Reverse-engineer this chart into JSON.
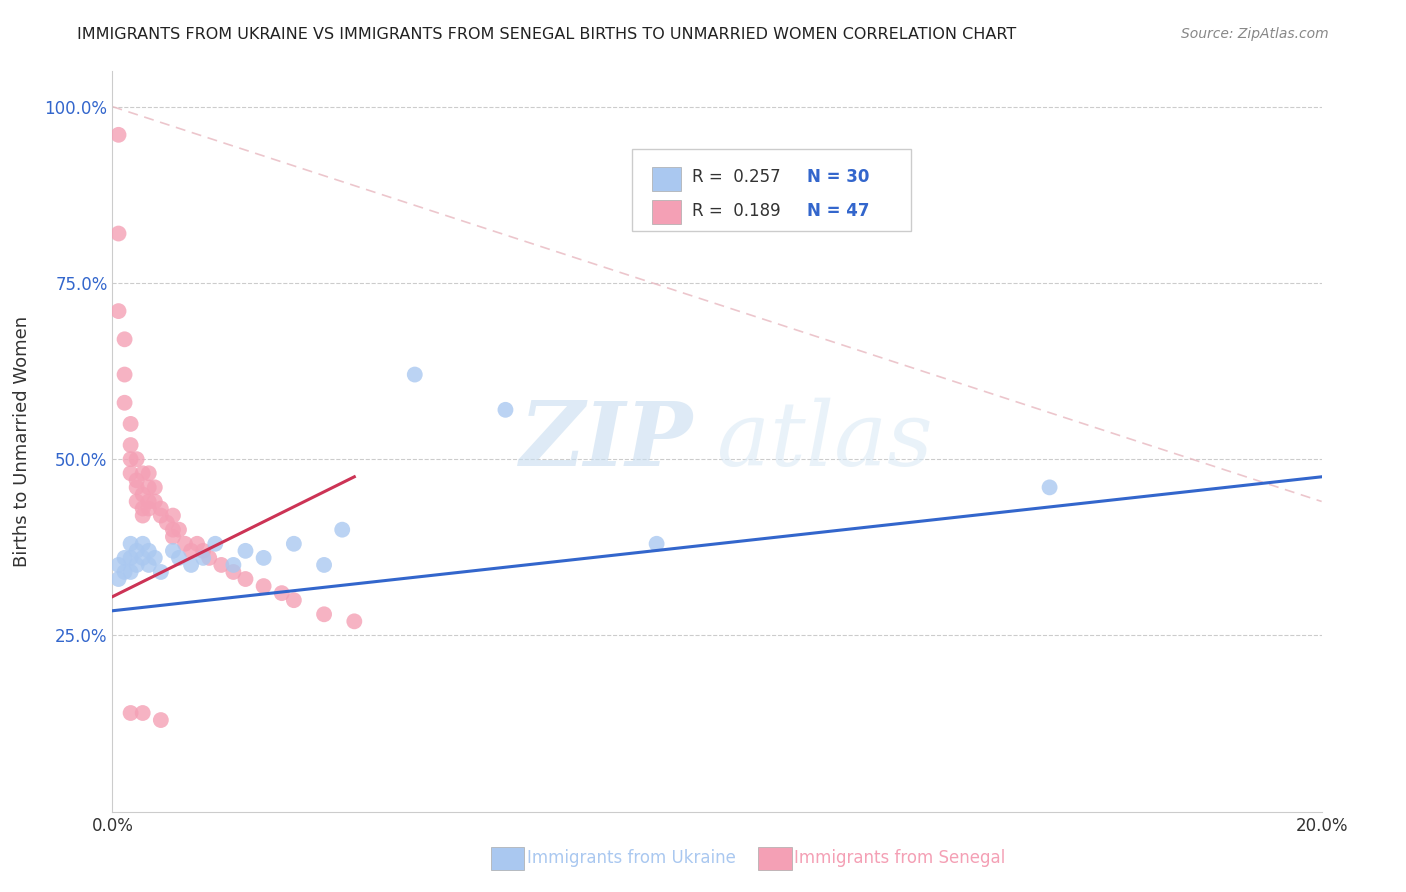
{
  "title": "IMMIGRANTS FROM UKRAINE VS IMMIGRANTS FROM SENEGAL BIRTHS TO UNMARRIED WOMEN CORRELATION CHART",
  "source": "Source: ZipAtlas.com",
  "ylabel": "Births to Unmarried Women",
  "xlabel_ukraine": "Immigrants from Ukraine",
  "xlabel_senegal": "Immigrants from Senegal",
  "xlim": [
    0.0,
    0.2
  ],
  "ylim": [
    0.0,
    1.05
  ],
  "ukraine_color": "#aac8f0",
  "senegal_color": "#f4a0b5",
  "ukraine_line_color": "#3366cc",
  "senegal_line_color": "#cc3355",
  "diag_line_color": "#e8b8c0",
  "watermark_zip": "ZIP",
  "watermark_atlas": "atlas",
  "legend_R_ukraine": "R =  0.257",
  "legend_N_ukraine": "N = 30",
  "legend_R_senegal": "R =  0.189",
  "legend_N_senegal": "N = 47",
  "ukraine_x": [
    0.001,
    0.001,
    0.002,
    0.002,
    0.003,
    0.003,
    0.003,
    0.004,
    0.004,
    0.005,
    0.005,
    0.006,
    0.006,
    0.007,
    0.008,
    0.01,
    0.011,
    0.013,
    0.015,
    0.017,
    0.02,
    0.022,
    0.025,
    0.03,
    0.035,
    0.038,
    0.05,
    0.065,
    0.09,
    0.155
  ],
  "ukraine_y": [
    0.35,
    0.33,
    0.36,
    0.34,
    0.38,
    0.36,
    0.34,
    0.37,
    0.35,
    0.38,
    0.36,
    0.37,
    0.35,
    0.36,
    0.34,
    0.37,
    0.36,
    0.35,
    0.36,
    0.38,
    0.35,
    0.37,
    0.36,
    0.38,
    0.35,
    0.4,
    0.62,
    0.57,
    0.38,
    0.46
  ],
  "senegal_x": [
    0.001,
    0.001,
    0.001,
    0.002,
    0.002,
    0.002,
    0.003,
    0.003,
    0.003,
    0.003,
    0.004,
    0.004,
    0.004,
    0.004,
    0.005,
    0.005,
    0.005,
    0.005,
    0.006,
    0.006,
    0.006,
    0.006,
    0.007,
    0.007,
    0.008,
    0.008,
    0.009,
    0.01,
    0.01,
    0.01,
    0.011,
    0.012,
    0.013,
    0.014,
    0.015,
    0.016,
    0.018,
    0.02,
    0.022,
    0.025,
    0.028,
    0.03,
    0.035,
    0.04,
    0.003,
    0.005,
    0.008
  ],
  "senegal_y": [
    0.96,
    0.82,
    0.71,
    0.67,
    0.62,
    0.58,
    0.55,
    0.52,
    0.5,
    0.48,
    0.5,
    0.47,
    0.46,
    0.44,
    0.48,
    0.45,
    0.43,
    0.42,
    0.48,
    0.46,
    0.44,
    0.43,
    0.46,
    0.44,
    0.43,
    0.42,
    0.41,
    0.42,
    0.4,
    0.39,
    0.4,
    0.38,
    0.37,
    0.38,
    0.37,
    0.36,
    0.35,
    0.34,
    0.33,
    0.32,
    0.31,
    0.3,
    0.28,
    0.27,
    0.14,
    0.14,
    0.13
  ],
  "ukraine_line_x": [
    0.0,
    0.2
  ],
  "ukraine_line_y": [
    0.285,
    0.475
  ],
  "senegal_line_x": [
    0.0,
    0.04
  ],
  "senegal_line_y": [
    0.305,
    0.475
  ],
  "diag_line_x": [
    0.0,
    0.2
  ],
  "diag_line_y": [
    1.0,
    0.44
  ]
}
